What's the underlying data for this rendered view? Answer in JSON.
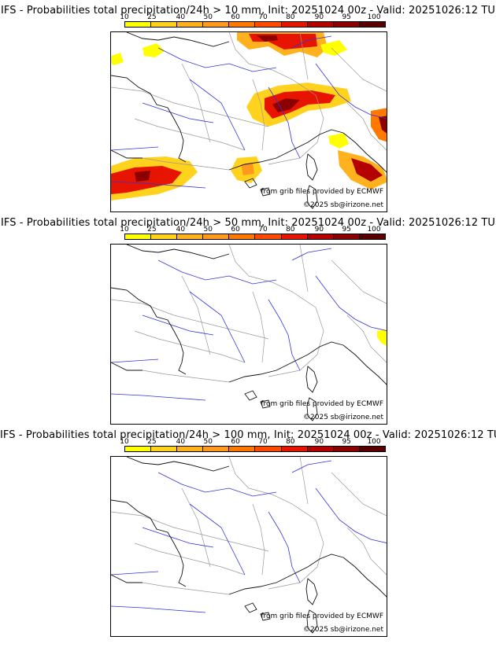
{
  "legend": {
    "labels": [
      "10",
      "25",
      "40",
      "50",
      "60",
      "70",
      "80",
      "90",
      "95",
      "100"
    ],
    "colors": [
      "#ffff00",
      "#ffd21e",
      "#ffb21e",
      "#ff9a1e",
      "#ff7800",
      "#ff4a00",
      "#e61400",
      "#b40000",
      "#8c0000",
      "#5a0000"
    ]
  },
  "panels": [
    {
      "title": "IFS - Probabilities total precipitation/24h > 10 mm, Init: 20251024 00z - Valid: 20251026:12 TU"
    },
    {
      "title": "IFS - Probabilities total precipitation/24h > 50 mm, Init: 20251024 00z - Valid: 20251026:12 TU"
    },
    {
      "title": "IFS - Probabilities total precipitation/24h > 100 mm, Init: 20251024 00z - Valid: 20251026:12 TU"
    }
  ],
  "credits": {
    "source": "from grib files provided by ECMWF",
    "copyright": "©2025 sb@irizone.net"
  },
  "map_colors": {
    "border": "#999999",
    "river": "#3333dd",
    "coast": "#111111"
  }
}
